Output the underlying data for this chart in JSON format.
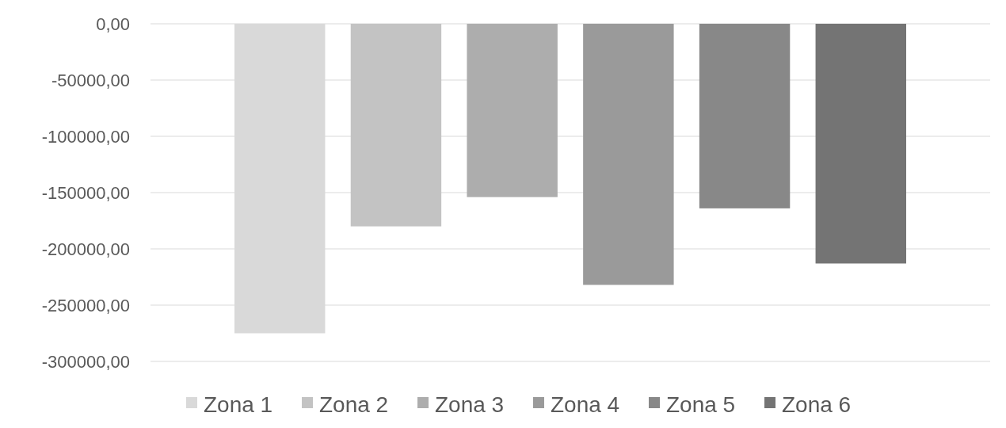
{
  "chart_data": {
    "type": "bar",
    "categories": [
      null
    ],
    "series": [
      {
        "name": "Zona 1",
        "color": "#d9d9d9",
        "values": [
          -275000
        ]
      },
      {
        "name": "Zona 2",
        "color": "#c3c3c3",
        "values": [
          -180000
        ]
      },
      {
        "name": "Zona 3",
        "color": "#adadad",
        "values": [
          -154000
        ]
      },
      {
        "name": "Zona 4",
        "color": "#9a9a9a",
        "values": [
          -232000
        ]
      },
      {
        "name": "Zona 5",
        "color": "#888888",
        "values": [
          -164000
        ]
      },
      {
        "name": "Zona 6",
        "color": "#747474",
        "values": [
          -213000
        ]
      }
    ],
    "ylim": [
      -300000,
      0
    ],
    "yticks": [
      {
        "value": 0,
        "label": "0,00"
      },
      {
        "value": -50000,
        "label": "-50000,00"
      },
      {
        "value": -100000,
        "label": "-100000,00"
      },
      {
        "value": -150000,
        "label": "-150000,00"
      },
      {
        "value": -200000,
        "label": "-200000,00"
      },
      {
        "value": -250000,
        "label": "-250000,00"
      },
      {
        "value": -300000,
        "label": "-300000,00"
      }
    ],
    "grid": "y",
    "legend": "bottom"
  }
}
